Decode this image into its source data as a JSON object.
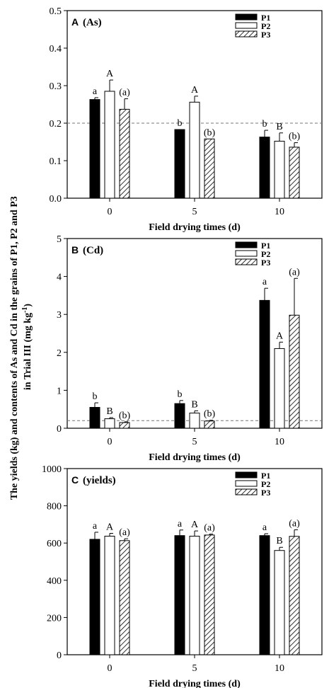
{
  "figure": {
    "ylabel_line1": "The yields (kg) and contents of As and Cd  in the grains of P1, P2 and P3",
    "ylabel_line2_pre": "in Trial III (mg kg",
    "ylabel_line2_sup": "-1",
    "ylabel_line2_post": ")"
  },
  "chart_data": [
    {
      "type": "bar",
      "panel_letter": "A",
      "panel_name": "(As)",
      "categories": [
        "0",
        "5",
        "10"
      ],
      "xlabel": "Field drying times (d)",
      "ylabel": "",
      "ylim": [
        0,
        0.5
      ],
      "yticks": [
        "0.0",
        "0.1",
        "0.2",
        "0.3",
        "0.4",
        "0.5"
      ],
      "reference_line": 0.2,
      "legend_position": "top-right",
      "series": [
        {
          "name": "P1",
          "values": [
            0.263,
            0.183,
            0.163
          ],
          "errors": [
            0.005,
            0.0,
            0.018
          ],
          "labels": [
            "a",
            "b",
            "b"
          ]
        },
        {
          "name": "P2",
          "values": [
            0.285,
            0.256,
            0.152
          ],
          "errors": [
            0.03,
            0.016,
            0.022
          ],
          "labels": [
            "A",
            "A",
            "B"
          ]
        },
        {
          "name": "P3",
          "values": [
            0.237,
            0.158,
            0.136
          ],
          "errors": [
            0.028,
            0.0,
            0.012
          ],
          "labels": [
            "(a)",
            "(b)",
            "(b)"
          ]
        }
      ]
    },
    {
      "type": "bar",
      "panel_letter": "B",
      "panel_name": "(Cd)",
      "categories": [
        "0",
        "5",
        "10"
      ],
      "xlabel": "Field drying times (d)",
      "ylabel": "",
      "ylim": [
        0,
        5
      ],
      "yticks": [
        "0",
        "1",
        "2",
        "3",
        "4",
        "5"
      ],
      "reference_line": 0.2,
      "legend_position": "top-right",
      "series": [
        {
          "name": "P1",
          "values": [
            0.55,
            0.65,
            3.37
          ],
          "errors": [
            0.12,
            0.08,
            0.32
          ],
          "labels": [
            "b",
            "b",
            "a"
          ]
        },
        {
          "name": "P2",
          "values": [
            0.25,
            0.4,
            2.1
          ],
          "errors": [
            0.03,
            0.06,
            0.17
          ],
          "labels": [
            "B",
            "B",
            "A"
          ]
        },
        {
          "name": "P3",
          "values": [
            0.15,
            0.19,
            2.98
          ],
          "errors": [
            0.02,
            0.02,
            0.97
          ],
          "labels": [
            "(b)",
            "(b)",
            "(a)"
          ]
        }
      ]
    },
    {
      "type": "bar",
      "panel_letter": "C",
      "panel_name": "(yields)",
      "categories": [
        "0",
        "5",
        "10"
      ],
      "xlabel": "Field drying times (d)",
      "ylabel": "",
      "ylim": [
        0,
        1000
      ],
      "yticks": [
        "0",
        "200",
        "400",
        "600",
        "800",
        "1000"
      ],
      "reference_line": null,
      "legend_position": "top-right",
      "series": [
        {
          "name": "P1",
          "values": [
            620,
            640,
            640
          ],
          "errors": [
            38,
            30,
            10
          ],
          "labels": [
            "a",
            "a",
            "a"
          ]
        },
        {
          "name": "P2",
          "values": [
            637,
            637,
            560
          ],
          "errors": [
            15,
            28,
            17
          ],
          "labels": [
            "A",
            "A",
            "B"
          ]
        },
        {
          "name": "P3",
          "values": [
            613,
            643,
            636
          ],
          "errors": [
            10,
            5,
            35
          ],
          "labels": [
            "(a)",
            "(a)",
            "(a)"
          ]
        }
      ]
    }
  ]
}
